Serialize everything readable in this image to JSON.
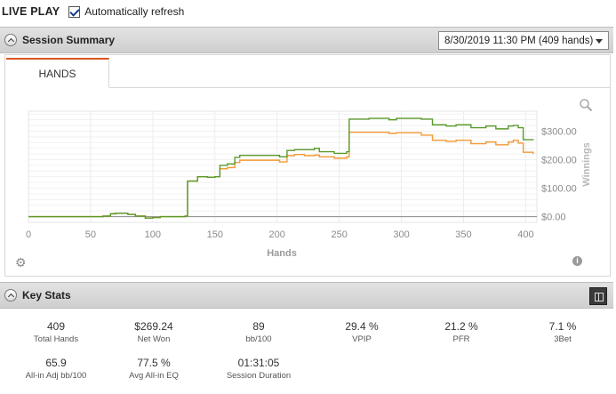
{
  "top": {
    "title": "LIVE PLAY",
    "auto_refresh_label": "Automatically refresh",
    "auto_refresh_checked": true
  },
  "session_summary": {
    "title": "Session Summary",
    "session_selected": "8/30/2019 11:30 PM (409 hands)",
    "tab_label": "HANDS"
  },
  "chart_data": {
    "type": "line",
    "xlabel": "Hands",
    "ylabel": "Winnings",
    "xlim": [
      0,
      409
    ],
    "ylim": [
      -20,
      370
    ],
    "x_ticks": [
      0,
      50,
      100,
      150,
      200,
      250,
      300,
      350,
      400
    ],
    "y_ticks": [
      0,
      100,
      200,
      300
    ],
    "y_tick_labels": [
      "$0.00",
      "$100.00",
      "$200.00",
      "$300.00"
    ],
    "grid": true,
    "series": [
      {
        "color": "#5a9a2a",
        "x": [
          0,
          30,
          60,
          66,
          70,
          76,
          80,
          86,
          94,
          100,
          106,
          116,
          126,
          128,
          136,
          144,
          150,
          154,
          160,
          166,
          170,
          186,
          202,
          208,
          214,
          222,
          230,
          234,
          246,
          256,
          258,
          274,
          290,
          296,
          316,
          325,
          336,
          344,
          356,
          368,
          376,
          386,
          390,
          394,
          398,
          406
        ],
        "y": [
          0,
          0,
          2,
          10,
          12,
          12,
          8,
          2,
          -5,
          -3,
          0,
          0,
          2,
          125,
          140,
          138,
          140,
          180,
          185,
          208,
          215,
          215,
          210,
          232,
          235,
          235,
          240,
          228,
          222,
          228,
          342,
          345,
          340,
          345,
          342,
          322,
          318,
          322,
          312,
          318,
          308,
          318,
          320,
          312,
          270,
          268
        ]
      },
      {
        "color": "#f39a36",
        "x": [
          0,
          30,
          60,
          66,
          70,
          76,
          80,
          86,
          94,
          100,
          106,
          116,
          126,
          128,
          136,
          144,
          150,
          154,
          160,
          166,
          170,
          186,
          202,
          208,
          214,
          222,
          230,
          234,
          246,
          256,
          258,
          274,
          290,
          296,
          316,
          325,
          336,
          344,
          356,
          368,
          376,
          386,
          390,
          394,
          398,
          406
        ],
        "y": [
          0,
          0,
          2,
          10,
          12,
          12,
          8,
          2,
          -5,
          -3,
          0,
          0,
          2,
          125,
          140,
          138,
          140,
          168,
          172,
          190,
          198,
          198,
          192,
          214,
          218,
          214,
          216,
          210,
          205,
          210,
          296,
          296,
          292,
          294,
          286,
          268,
          264,
          268,
          256,
          262,
          252,
          262,
          268,
          258,
          226,
          220
        ]
      },
      {
        "color": "#8a8a8a",
        "x": [
          0,
          409
        ],
        "y": [
          0,
          0
        ]
      }
    ]
  },
  "key_stats": {
    "title": "Key Stats",
    "items": [
      {
        "value": "409",
        "label": "Total Hands"
      },
      {
        "value": "$269.24",
        "label": "Net Won"
      },
      {
        "value": "89",
        "label": "bb/100"
      },
      {
        "value": "29.4 %",
        "label": "VPIP"
      },
      {
        "value": "21.2 %",
        "label": "PFR"
      },
      {
        "value": "7.1 %",
        "label": "3Bet"
      },
      {
        "value": "65.9",
        "label": "All-in Adj bb/100"
      },
      {
        "value": "77.5 %",
        "label": "Avg All-in EQ"
      },
      {
        "value": "01:31:05",
        "label": "Session Duration"
      }
    ]
  },
  "icons": {
    "collapse": "chevron-up-icon",
    "settings": "gear-icon",
    "info": "info-icon",
    "zoom": "zoom-icon",
    "layout": "layout-toggle-icon"
  }
}
